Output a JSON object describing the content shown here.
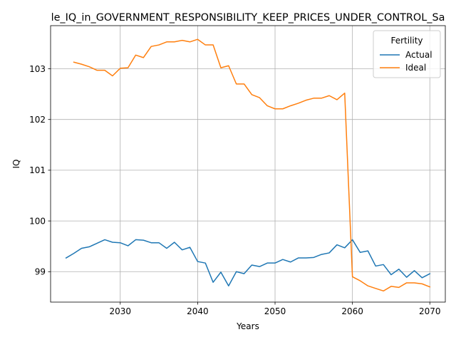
{
  "chart_data": {
    "type": "line",
    "title": "le_IQ_in_GOVERNMENT_RESPONSIBILITY_KEEP_PRICES_UNDER_CONTROL_Sa",
    "xlabel": "Years",
    "ylabel": "IQ",
    "xlim": [
      2021,
      2072
    ],
    "ylim": [
      98.4,
      103.85
    ],
    "xticks": [
      2030,
      2040,
      2050,
      2060,
      2070
    ],
    "yticks": [
      99,
      100,
      101,
      102,
      103
    ],
    "grid": true,
    "legend": {
      "title": "Fertility",
      "placement": "top-right"
    },
    "x": [
      2023,
      2024,
      2025,
      2026,
      2027,
      2028,
      2029,
      2030,
      2031,
      2032,
      2033,
      2034,
      2035,
      2036,
      2037,
      2038,
      2039,
      2040,
      2041,
      2042,
      2043,
      2044,
      2045,
      2046,
      2047,
      2048,
      2049,
      2050,
      2051,
      2052,
      2053,
      2054,
      2055,
      2056,
      2057,
      2058,
      2059,
      2060,
      2061,
      2062,
      2063,
      2064,
      2065,
      2066,
      2067,
      2068,
      2069,
      2070
    ],
    "series": [
      {
        "name": "Actual",
        "color": "#1f77b4",
        "values": [
          99.27,
          99.36,
          99.46,
          99.49,
          99.56,
          99.63,
          99.58,
          99.57,
          99.51,
          99.63,
          99.62,
          99.57,
          99.57,
          99.46,
          99.58,
          99.43,
          99.48,
          99.2,
          99.17,
          98.79,
          98.99,
          98.72,
          99.0,
          98.96,
          99.13,
          99.1,
          99.17,
          99.17,
          99.24,
          99.19,
          99.27,
          99.27,
          99.28,
          99.34,
          99.37,
          99.53,
          99.47,
          99.63,
          99.38,
          99.41,
          99.11,
          99.14,
          98.94,
          99.05,
          98.89,
          99.02,
          98.88,
          98.96
        ]
      },
      {
        "name": "Ideal",
        "color": "#ff7f0e",
        "values": [
          null,
          103.13,
          103.09,
          103.04,
          102.97,
          102.97,
          102.86,
          103.01,
          103.02,
          103.27,
          103.22,
          103.44,
          103.47,
          103.53,
          103.53,
          103.56,
          103.53,
          103.58,
          103.47,
          103.47,
          103.02,
          103.06,
          102.7,
          102.7,
          102.49,
          102.43,
          102.27,
          102.21,
          102.21,
          102.27,
          102.32,
          102.38,
          102.42,
          102.42,
          102.47,
          102.39,
          102.52,
          98.9,
          98.82,
          98.72,
          98.67,
          98.62,
          98.71,
          98.69,
          98.78,
          98.78,
          98.76,
          98.7
        ]
      }
    ]
  }
}
